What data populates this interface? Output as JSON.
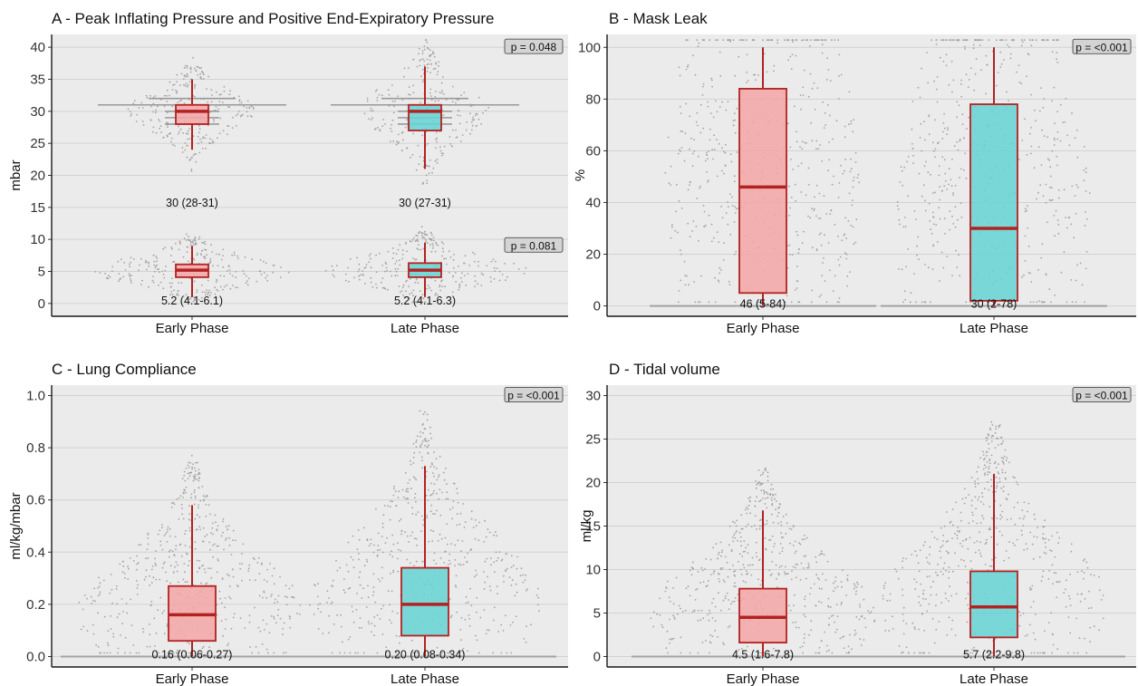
{
  "colors": {
    "panel_bg": "#ebebeb",
    "grid": "#d2d2d2",
    "axis": "#1a1a1a",
    "box_edge": "#b22222",
    "early_fill": "#f4a6a6",
    "late_fill": "#66d4d4",
    "dots": "#a3a3a3",
    "pbox_fill": "#d4d4d4"
  },
  "chart_data": [
    {
      "id": "A",
      "type": "box",
      "title": "A - Peak Inflating Pressure and Positive End-Expiratory Pressure",
      "ylabel": "mbar",
      "xlabel": "",
      "ylim": [
        -2,
        42
      ],
      "yticks": [
        0,
        5,
        10,
        15,
        20,
        25,
        30,
        35,
        40
      ],
      "ytick_labels": [
        "0",
        "5",
        "10",
        "15",
        "20",
        "25",
        "30",
        "35",
        "40"
      ],
      "categories": [
        "Early Phase",
        "Late Phase"
      ],
      "grid": true,
      "series": [
        {
          "measure": "PIP",
          "boxes": [
            {
              "min": 24,
              "q1": 28,
              "median": 30,
              "q3": 31,
              "max": 35,
              "label": "30 (28-31)"
            },
            {
              "min": 21,
              "q1": 27,
              "median": 30,
              "q3": 31,
              "max": 37,
              "label": "30 (27-31)"
            }
          ],
          "label_y": 15,
          "spread": 4,
          "p_value": "p = 0.048",
          "p_y": 40
        },
        {
          "measure": "PEEP",
          "boxes": [
            {
              "min": 1,
              "q1": 4.1,
              "median": 5.2,
              "q3": 6.1,
              "max": 9,
              "label": "5.2 (4.1-6.1)"
            },
            {
              "min": 1,
              "q1": 4.1,
              "median": 5.2,
              "q3": 6.3,
              "max": 9.5,
              "label": "5.2 (4.1-6.3)"
            }
          ],
          "label_y": -0.3,
          "spread": 2,
          "p_value": "p = 0.081",
          "p_y": 9
        }
      ]
    },
    {
      "id": "B",
      "type": "box",
      "title": "B - Mask Leak",
      "ylabel": "%",
      "xlabel": "",
      "ylim": [
        -4,
        105
      ],
      "yticks": [
        0,
        20,
        40,
        60,
        80,
        100
      ],
      "ytick_labels": [
        "0",
        "20",
        "40",
        "60",
        "80",
        "100"
      ],
      "categories": [
        "Early Phase",
        "Late Phase"
      ],
      "grid": true,
      "series": [
        {
          "measure": "Leak",
          "boxes": [
            {
              "min": 0,
              "q1": 5,
              "median": 46,
              "q3": 84,
              "max": 100,
              "label": "46 (5-84)"
            },
            {
              "min": 0,
              "q1": 2,
              "median": 30,
              "q3": 78,
              "max": 100,
              "label": "30 (2-78)"
            }
          ],
          "label_y": -1,
          "spread": 1,
          "p_value": "p = <0.001",
          "p_y": 100
        }
      ]
    },
    {
      "id": "C",
      "type": "box",
      "title": "C - Lung Compliance",
      "ylabel": "ml/kg/mbar",
      "xlabel": "",
      "ylim": [
        -0.04,
        1.04
      ],
      "yticks": [
        0,
        0.2,
        0.4,
        0.6,
        0.8,
        1.0
      ],
      "ytick_labels": [
        "0.0",
        "0.2",
        "0.4",
        "0.6",
        "0.8",
        "1.0"
      ],
      "categories": [
        "Early Phase",
        "Late Phase"
      ],
      "grid": true,
      "series": [
        {
          "measure": "Compliance",
          "boxes": [
            {
              "min": 0,
              "q1": 0.06,
              "median": 0.16,
              "q3": 0.27,
              "max": 0.58,
              "label": "0.16 (0.06-0.27)"
            },
            {
              "min": 0,
              "q1": 0.08,
              "median": 0.2,
              "q3": 0.34,
              "max": 0.73,
              "label": "0.20 (0.08-0.34)"
            }
          ],
          "label_y": -0.01,
          "spread": 0.01,
          "p_value": "p = <0.001",
          "p_y": 1.0
        }
      ]
    },
    {
      "id": "D",
      "type": "box",
      "title": "D - Tidal volume",
      "ylabel": "ml/kg",
      "xlabel": "",
      "ylim": [
        -1.2,
        31.2
      ],
      "yticks": [
        0,
        5,
        10,
        15,
        20,
        25,
        30
      ],
      "ytick_labels": [
        "0",
        "5",
        "10",
        "15",
        "20",
        "25",
        "30"
      ],
      "categories": [
        "Early Phase",
        "Late Phase"
      ],
      "grid": true,
      "series": [
        {
          "measure": "Tidal volume",
          "boxes": [
            {
              "min": 0,
              "q1": 1.6,
              "median": 4.5,
              "q3": 7.8,
              "max": 16.8,
              "label": "4.5 (1.6-7.8)"
            },
            {
              "min": 0,
              "q1": 2.2,
              "median": 5.7,
              "q3": 9.8,
              "max": 21,
              "label": "5.7 (2.2-9.8)"
            }
          ],
          "label_y": -0.3,
          "spread": 1.2,
          "p_value": "p = <0.001",
          "p_y": 30
        }
      ]
    }
  ]
}
